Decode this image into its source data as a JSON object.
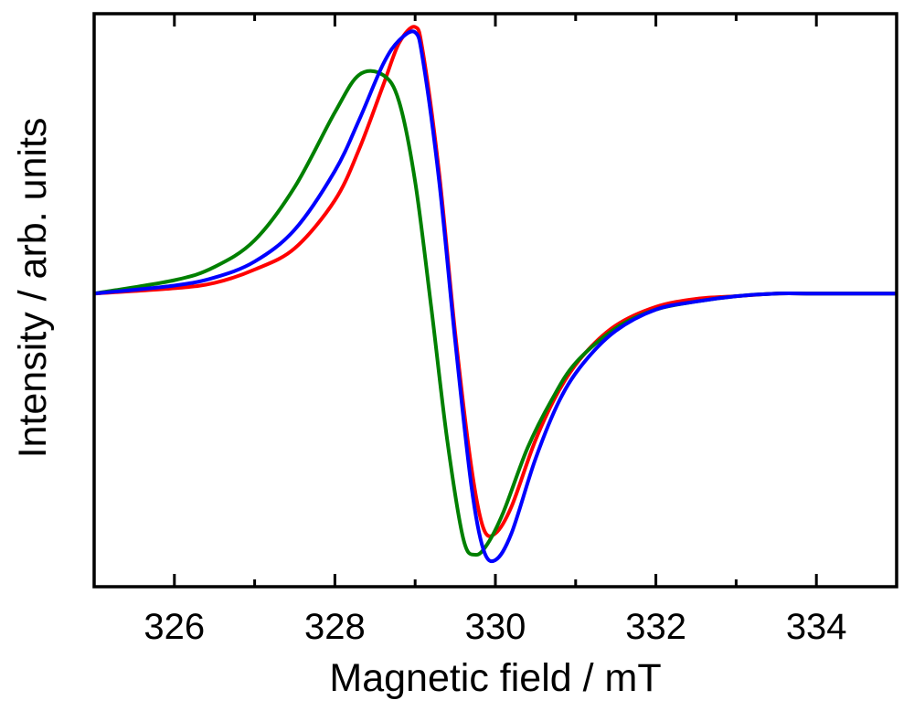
{
  "chart_data": {
    "type": "line",
    "title": "",
    "xlabel": "Magnetic field / mT",
    "ylabel": "Intensity / arb. units",
    "xlim": [
      325,
      335
    ],
    "ylim": [
      -1.1,
      1.05
    ],
    "xticks": [
      {
        "value": 326,
        "label": "326"
      },
      {
        "value": 328,
        "label": "328"
      },
      {
        "value": 330,
        "label": "330"
      },
      {
        "value": 332,
        "label": "332"
      },
      {
        "value": 334,
        "label": "334"
      }
    ],
    "minor_xticks": [
      327,
      329,
      331,
      333
    ],
    "yticks": [],
    "grid": false,
    "legend": null,
    "series": [
      {
        "name": "red",
        "color": "#ff0000",
        "x": [
          325.0,
          326.0,
          326.5,
          327.0,
          327.5,
          328.0,
          328.3,
          328.6,
          328.8,
          329.0,
          329.1,
          329.3,
          329.5,
          329.7,
          329.85,
          330.0,
          330.2,
          330.5,
          330.8,
          331.1,
          331.5,
          332.0,
          332.5,
          333.0,
          333.5,
          334.0,
          335.0
        ],
        "values": [
          0.0,
          0.02,
          0.04,
          0.09,
          0.17,
          0.35,
          0.54,
          0.78,
          0.94,
          1.0,
          0.9,
          0.45,
          -0.15,
          -0.65,
          -0.88,
          -0.9,
          -0.8,
          -0.55,
          -0.36,
          -0.23,
          -0.12,
          -0.05,
          -0.02,
          -0.01,
          0.0,
          0.0,
          0.0
        ]
      },
      {
        "name": "green",
        "color": "#008000",
        "x": [
          325.0,
          326.0,
          326.5,
          327.0,
          327.5,
          328.0,
          328.3,
          328.6,
          328.8,
          329.0,
          329.2,
          329.4,
          329.6,
          329.75,
          329.9,
          330.1,
          330.4,
          330.7,
          331.0,
          331.5,
          332.0,
          332.5,
          333.0,
          333.5,
          334.0,
          335.0
        ],
        "values": [
          0.0,
          0.05,
          0.1,
          0.2,
          0.4,
          0.68,
          0.82,
          0.82,
          0.72,
          0.42,
          -0.05,
          -0.55,
          -0.92,
          -0.98,
          -0.94,
          -0.82,
          -0.58,
          -0.4,
          -0.26,
          -0.13,
          -0.06,
          -0.03,
          -0.01,
          0.0,
          0.0,
          0.0
        ]
      },
      {
        "name": "blue",
        "color": "#0000ff",
        "x": [
          325.0,
          326.0,
          326.5,
          327.0,
          327.5,
          328.0,
          328.3,
          328.6,
          328.8,
          329.0,
          329.1,
          329.3,
          329.5,
          329.7,
          329.85,
          330.0,
          330.2,
          330.5,
          330.8,
          331.1,
          331.5,
          332.0,
          332.5,
          333.0,
          333.5,
          334.0,
          335.0
        ],
        "values": [
          0.0,
          0.03,
          0.06,
          0.12,
          0.24,
          0.46,
          0.65,
          0.86,
          0.95,
          0.98,
          0.87,
          0.42,
          -0.18,
          -0.72,
          -0.96,
          -1.0,
          -0.9,
          -0.62,
          -0.4,
          -0.26,
          -0.14,
          -0.06,
          -0.03,
          -0.01,
          0.0,
          0.0,
          0.0
        ]
      }
    ]
  }
}
